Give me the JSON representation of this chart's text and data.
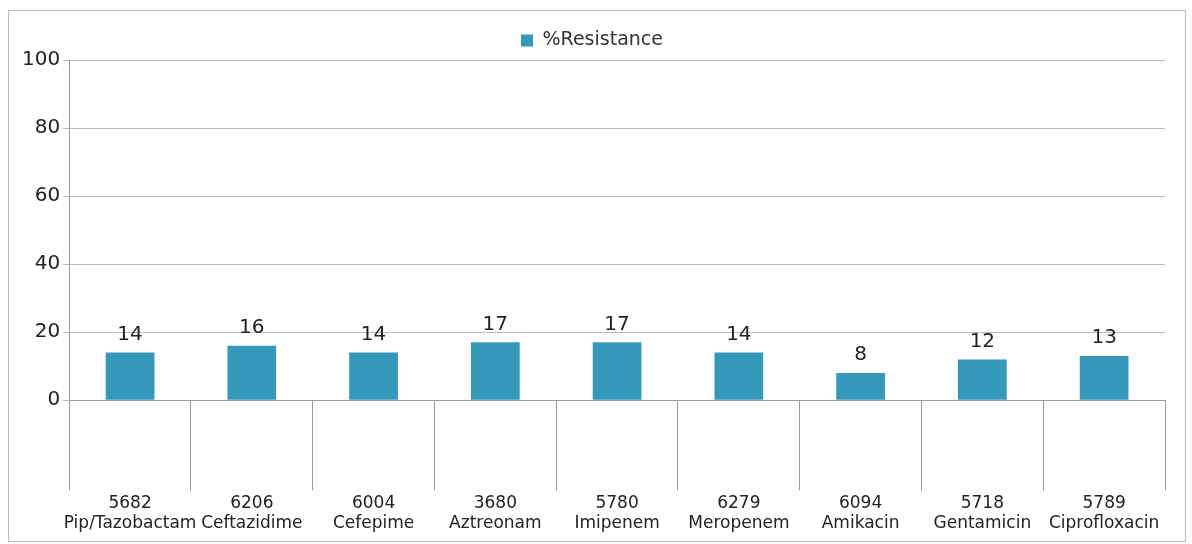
{
  "chart_data": {
    "type": "bar",
    "categories": [
      "5682\nPip/Tazobactam",
      "6206\nCeftazidime",
      "6004\nCefepime",
      "3680\nAztreonam",
      "5780\nImipenem",
      "6279\nMeropenem",
      "6094\nAmikacin",
      "5718\nGentamicin",
      "5789\nCiprofloxacin"
    ],
    "series": [
      {
        "name": "%Resistance",
        "color": "#3498bb",
        "values": [
          14,
          16,
          14,
          17,
          17,
          14,
          8,
          12,
          13
        ]
      }
    ],
    "ylim": [
      0,
      100
    ],
    "yticks": [
      0,
      20,
      40,
      60,
      80,
      100
    ],
    "grid": "y",
    "legend": "top",
    "data_labels": true
  }
}
